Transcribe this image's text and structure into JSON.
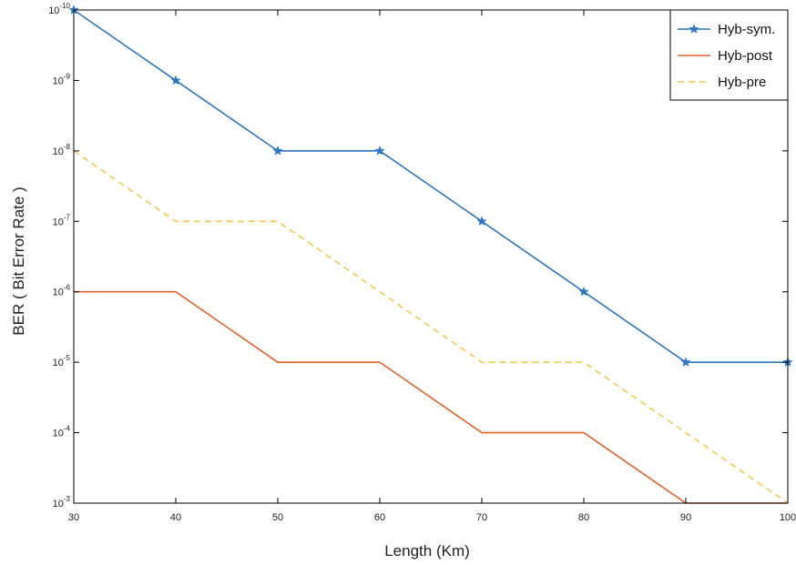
{
  "chart_data": {
    "type": "line",
    "x": [
      30,
      40,
      50,
      60,
      70,
      80,
      90,
      100
    ],
    "xlabel": "Length (Km)",
    "ylabel": "BER ( Bit Error Rate )",
    "xlim": [
      30,
      100
    ],
    "ylim": [
      -10,
      -3
    ],
    "y_scale": "log (reversed, 10^-10 at top to 10^-3 at bottom)",
    "x_ticks": [
      "30",
      "40",
      "50",
      "60",
      "70",
      "80",
      "90",
      "100"
    ],
    "y_ticks": [
      {
        "base": "10",
        "exp": "-10"
      },
      {
        "base": "10",
        "exp": "-9"
      },
      {
        "base": "10",
        "exp": "-8"
      },
      {
        "base": "10",
        "exp": "-7"
      },
      {
        "base": "10",
        "exp": "-6"
      },
      {
        "base": "10",
        "exp": "-5"
      },
      {
        "base": "10",
        "exp": "-4"
      },
      {
        "base": "10",
        "exp": "-3"
      }
    ],
    "series": [
      {
        "name": "Hyb-sym.",
        "color": "#2E77BE",
        "style": "solid-star-marker",
        "values": [
          1e-10,
          1e-09,
          1e-08,
          1e-08,
          1e-07,
          1e-06,
          1e-05,
          1e-05
        ]
      },
      {
        "name": "Hyb-post",
        "color": "#E0612A",
        "style": "solid",
        "values": [
          1e-06,
          1e-06,
          1e-05,
          1e-05,
          0.0001,
          0.0001,
          0.001,
          0.001
        ]
      },
      {
        "name": "Hyb-pre",
        "color": "#F2C94C",
        "style": "dashed",
        "values": [
          1e-08,
          1e-07,
          1e-07,
          1e-06,
          1e-05,
          1e-05,
          0.0001,
          0.001
        ]
      }
    ],
    "grid": false,
    "legend_position": "top-right"
  }
}
